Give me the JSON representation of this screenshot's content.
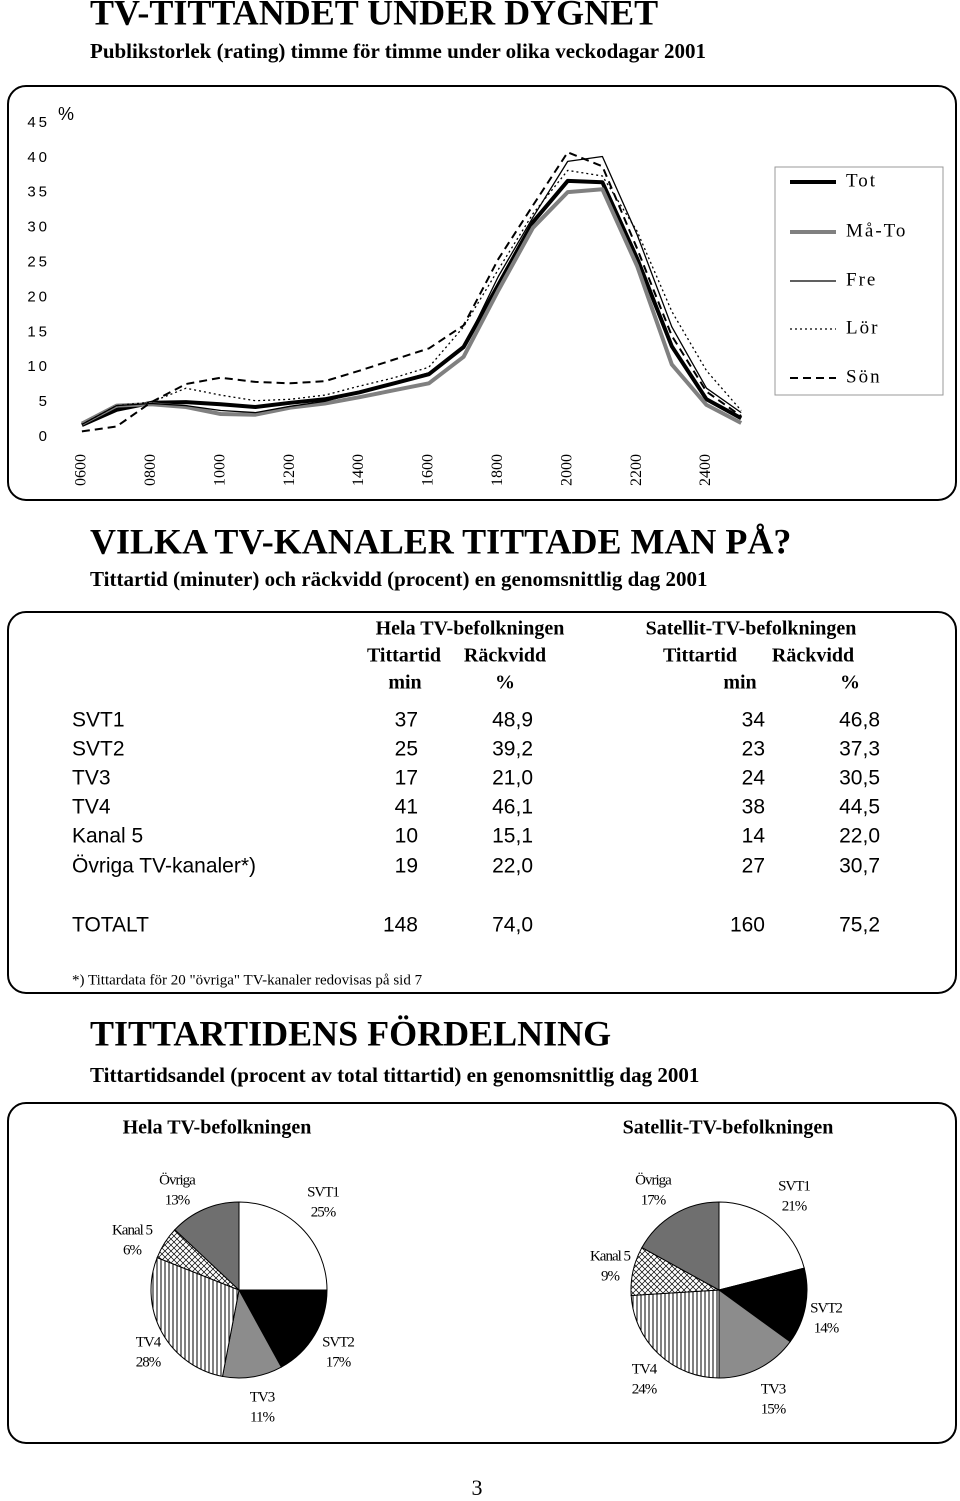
{
  "sections": [
    {
      "title": "TV-TITTANDET UNDER DYGNET",
      "subtitle": "Publikstorlek (rating) timme för timme under olika veckodagar 2001"
    },
    {
      "title": "VILKA TV-KANALER TITTADE MAN PÅ?",
      "subtitle": "Tittartid (minuter) och räckvidd (procent) en genomsnittlig dag 2001"
    },
    {
      "title": "TITTARTIDENS FÖRDELNING",
      "subtitle": "Tittartidsandel (procent av total tittartid) en genomsnittlig dag 2001"
    }
  ],
  "chart_data": [
    {
      "type": "line",
      "y_label": "%",
      "x": [
        6,
        7,
        8,
        9,
        10,
        11,
        12,
        13,
        14,
        15,
        16,
        17,
        18,
        19,
        20,
        21,
        22,
        23,
        24,
        25
      ],
      "xlim": [
        5.6,
        25.6
      ],
      "xticks": [
        {
          "value": 6,
          "label": "0600"
        },
        {
          "value": 8,
          "label": "0800"
        },
        {
          "value": 10,
          "label": "1000"
        },
        {
          "value": 12,
          "label": "1200"
        },
        {
          "value": 14,
          "label": "1400"
        },
        {
          "value": 16,
          "label": "1600"
        },
        {
          "value": 18,
          "label": "1800"
        },
        {
          "value": 20,
          "label": "2000"
        },
        {
          "value": 22,
          "label": "2200"
        },
        {
          "value": 24,
          "label": "2400"
        }
      ],
      "ylim": [
        0,
        45
      ],
      "yticks": [
        0,
        5,
        10,
        15,
        20,
        25,
        30,
        35,
        40,
        45
      ],
      "legend": "right",
      "series": [
        {
          "name": "Tot",
          "color": "#000000",
          "width": 4,
          "dash": "solid",
          "values": [
            1.7,
            3.9,
            4.9,
            5.0,
            4.7,
            4.3,
            4.9,
            5.4,
            6.4,
            7.7,
            9.0,
            12.9,
            21.8,
            30.8,
            36.7,
            36.5,
            25.6,
            13.0,
            5.4,
            2.7
          ]
        },
        {
          "name": "Må-To",
          "color": "#808080",
          "width": 4,
          "dash": "solid",
          "values": [
            1.9,
            4.5,
            4.7,
            4.3,
            3.3,
            3.2,
            4.2,
            4.8,
            5.7,
            6.7,
            7.7,
            11.5,
            21.0,
            30.0,
            35.1,
            35.5,
            24.5,
            10.4,
            4.6,
            2.0
          ]
        },
        {
          "name": "Fre",
          "color": "#000000",
          "width": 1.3,
          "dash": "solid",
          "values": [
            1.8,
            4.5,
            4.8,
            4.5,
            3.8,
            3.5,
            4.4,
            5.1,
            6.4,
            7.8,
            9.2,
            12.8,
            23.0,
            31.5,
            39.5,
            40.2,
            29.0,
            15.8,
            7.0,
            3.5
          ]
        },
        {
          "name": "Lör",
          "color": "#000000",
          "width": 1.3,
          "dash": "dotted",
          "values": [
            1.8,
            4.5,
            5.0,
            7.0,
            6.0,
            5.2,
            5.4,
            6.0,
            7.3,
            8.5,
            10.0,
            15.8,
            24.0,
            32.0,
            38.2,
            37.4,
            29.5,
            18.0,
            9.5,
            3.8
          ]
        },
        {
          "name": "Sön",
          "color": "#000000",
          "width": 2,
          "dash": "dashed",
          "values": [
            0.8,
            1.5,
            5.0,
            7.6,
            8.5,
            7.9,
            7.7,
            8.0,
            9.5,
            11.1,
            12.7,
            16.0,
            25.5,
            33.2,
            40.8,
            38.8,
            27.0,
            14.5,
            6.5,
            3.0
          ]
        }
      ]
    },
    {
      "type": "pie",
      "title": "Hela TV-befolkningen",
      "categories": [
        "SVT1",
        "SVT2",
        "TV3",
        "TV4",
        "Kanal 5",
        "Övriga"
      ],
      "values": [
        25,
        17,
        11,
        28,
        6,
        13
      ],
      "value_labels": [
        "25%",
        "17%",
        "11%",
        "28%",
        "6%",
        "13%"
      ],
      "colors": [
        "#ffffff",
        "#000000",
        "#8c8c8c",
        "vertical-stripes",
        "diagonal-hatch",
        "#6f6f6f"
      ]
    },
    {
      "type": "pie",
      "title": "Satellit-TV-befolkningen",
      "categories": [
        "SVT1",
        "SVT2",
        "TV3",
        "TV4",
        "Kanal 5",
        "Övriga"
      ],
      "values": [
        21,
        14,
        15,
        24,
        9,
        17
      ],
      "value_labels": [
        "21%",
        "14%",
        "15%",
        "24%",
        "9%",
        "17%"
      ],
      "colors": [
        "#ffffff",
        "#000000",
        "#8c8c8c",
        "vertical-stripes",
        "diagonal-hatch",
        "#6f6f6f"
      ]
    }
  ],
  "table": {
    "group_headers": [
      "Hela TV-befolkningen",
      "Satellit-TV-befolkningen"
    ],
    "column_headers": [
      "Tittartid",
      "Räckvidd",
      "Tittartid",
      "Räckvidd"
    ],
    "unit_headers": [
      "min",
      "%",
      "min",
      "%"
    ],
    "rows": [
      [
        "SVT1",
        "37",
        "48,9",
        "34",
        "46,8"
      ],
      [
        "SVT2",
        "25",
        "39,2",
        "23",
        "37,3"
      ],
      [
        "TV3",
        "17",
        "21,0",
        "24",
        "30,5"
      ],
      [
        "TV4",
        "41",
        "46,1",
        "38",
        "44,5"
      ],
      [
        "Kanal 5",
        "10",
        "15,1",
        "14",
        "22,0"
      ],
      [
        "Övriga TV-kanaler*)",
        "19",
        "22,0",
        "27",
        "30,7"
      ],
      [
        "TOTALT",
        "148",
        "74,0",
        "160",
        "75,2"
      ]
    ],
    "footnote": "*) Tittardata för 20 \"övriga\" TV-kanaler redovisas på sid 7"
  },
  "page_number": "3"
}
